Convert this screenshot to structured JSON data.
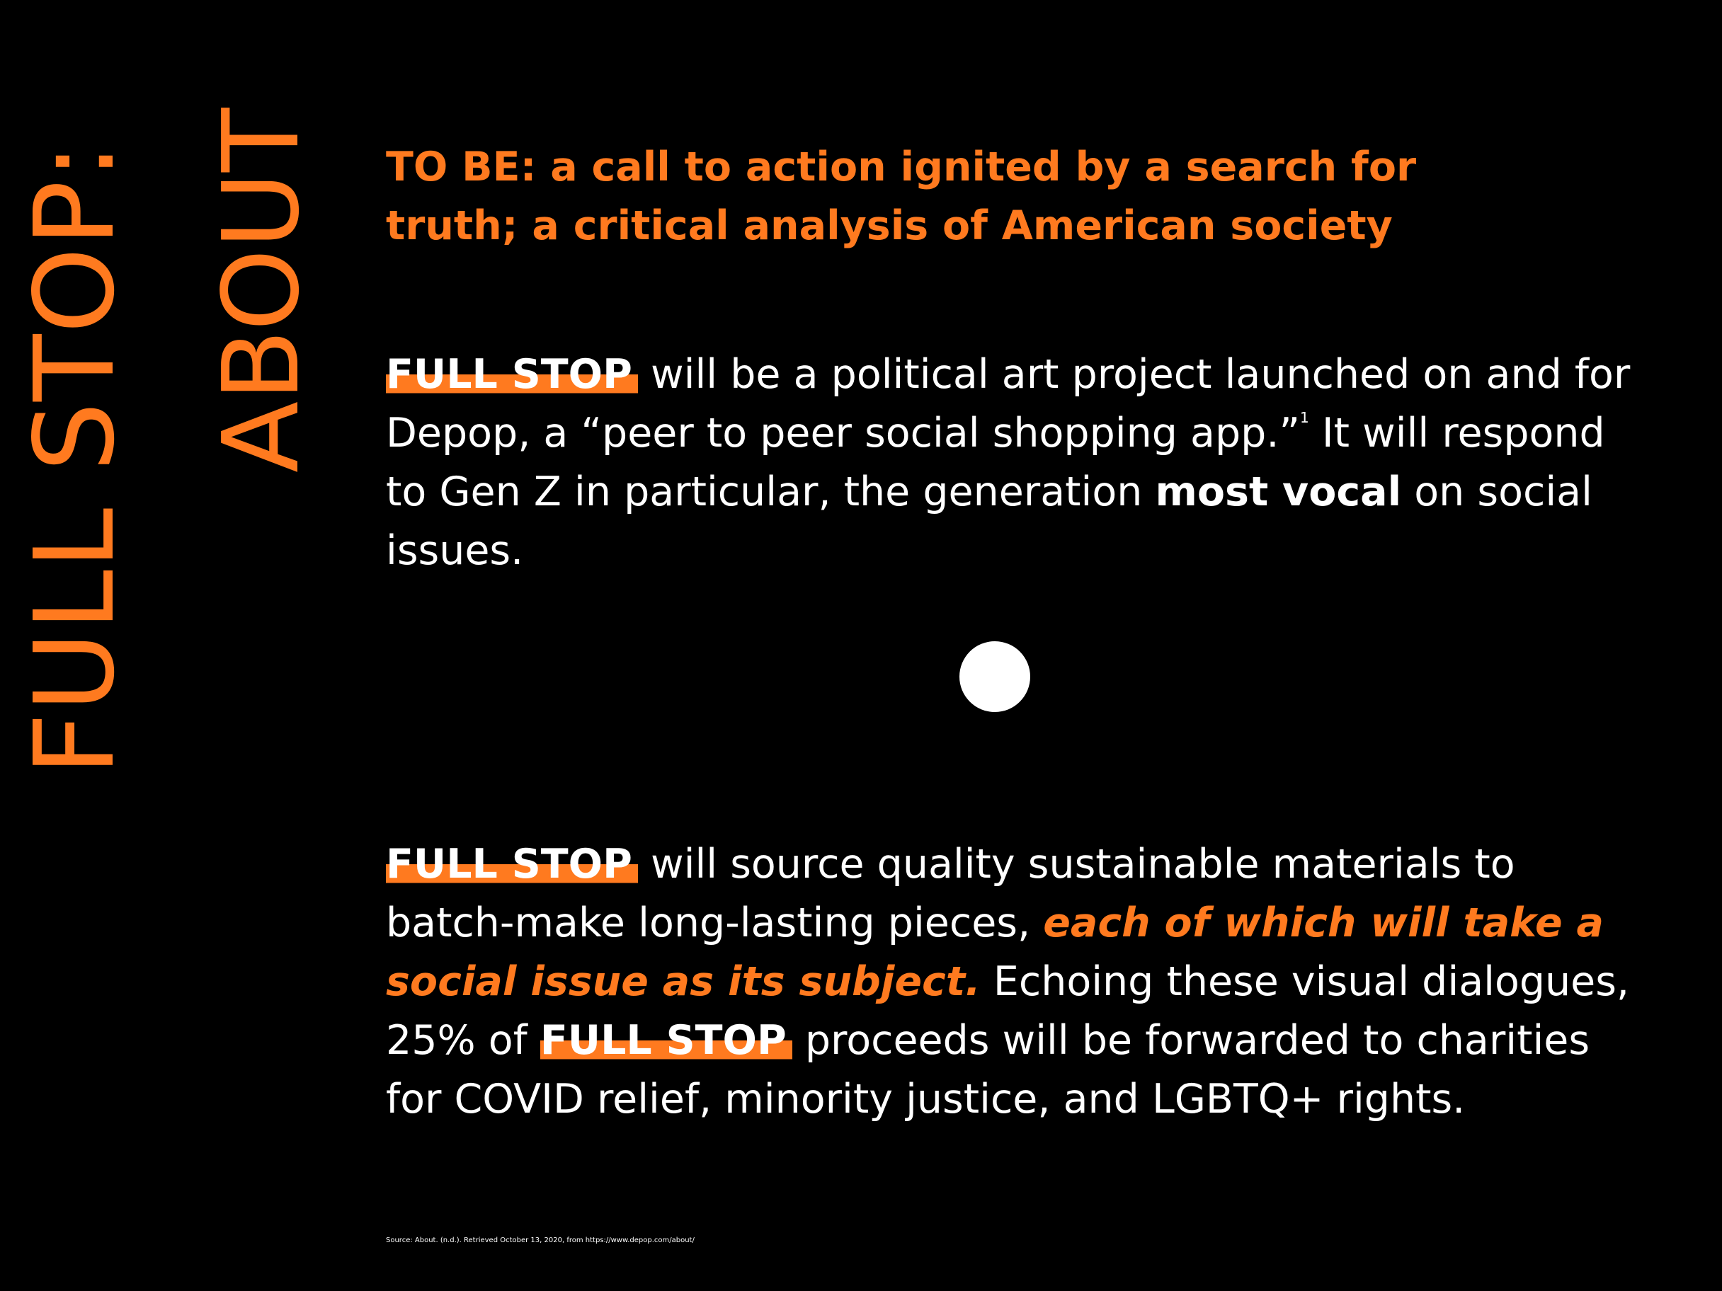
{
  "side_titles": {
    "line1": "FULL STOP:",
    "line2": "ABOUT"
  },
  "tagline": {
    "line1": "TO BE: a call to action ignited by a search for",
    "line2": "truth; a critical analysis of American society"
  },
  "paragraph1": {
    "brand": "FULL STOP",
    "text_a": " will be a political art project launched on and for Depop, a “peer to peer social shopping app.”",
    "footnote_ref": "1",
    "text_b": " It will respond to Gen Z in particular, the generation ",
    "emphasis": "most vocal",
    "text_c": " on social issues."
  },
  "paragraph2": {
    "brand": "FULL STOP",
    "text_a": " will source quality sustainable materials to batch-make long-lasting pieces, ",
    "highlight": "each of which will take a social issue as its subject.",
    "text_b": " Echoing these visual dialogues, 25% of ",
    "brand2": "FULL STOP",
    "text_c": " proceeds will be forwarded to charities for COVID relief, minority  justice, and LGBTQ+ rights."
  },
  "source_note": "Source: About. (n.d.). Retrieved October 13, 2020, from https://www.depop.com/about/",
  "colors": {
    "accent": "#ff7a1f",
    "background": "#000000",
    "text": "#ffffff"
  }
}
